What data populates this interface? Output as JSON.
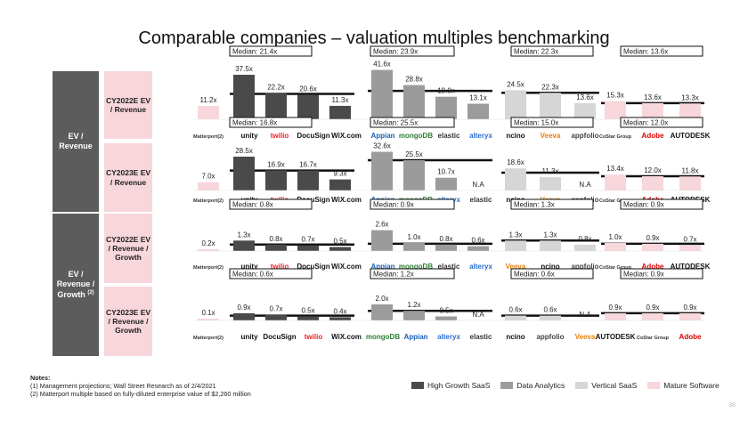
{
  "title": "Comparable companies – valuation multiples benchmarking",
  "colors": {
    "high_growth": "#4a4a4a",
    "data_analytics": "#9b9b9b",
    "vertical": "#d6d6d6",
    "mature": "#f7d6dc",
    "median_border": "#111111"
  },
  "groups": [
    {
      "label": "EV / Revenue"
    },
    {
      "label": "EV / Revenue / Growth",
      "sup": "(2)"
    }
  ],
  "rows": [
    {
      "label": "CY2022E EV / Revenue"
    },
    {
      "label": "CY2023E EV / Revenue"
    },
    {
      "label": "CY2022E EV / Revenue / Growth"
    },
    {
      "label": "CY2023E EV / Revenue / Growth"
    }
  ],
  "legend": [
    {
      "label": "High Growth SaaS",
      "color": "#4a4a4a"
    },
    {
      "label": "Data Analytics",
      "color": "#9b9b9b"
    },
    {
      "label": "Vertical SaaS",
      "color": "#d6d6d6"
    },
    {
      "label": "Mature Software",
      "color": "#f7d6dc"
    }
  ],
  "notes": {
    "heading": "Notes:",
    "lines": [
      "(1) Management projections; Wall Street Research as of 2/4/2021",
      "(2) Matterport multiple based on fully-diluted enterprise value of $2,260 million"
    ]
  },
  "page_number": "38",
  "chart_data": [
    {
      "type": "bar",
      "title": "CY2022E EV / Revenue",
      "ylim": [
        0,
        45
      ],
      "groups": [
        {
          "category": "Matterport",
          "color": "#f7d6dc",
          "median": null,
          "categories": [
            "Matterport"
          ],
          "values": [
            11.2
          ],
          "labels": [
            "11.2x"
          ]
        },
        {
          "category": "High Growth SaaS",
          "color": "#4a4a4a",
          "median_label": "Median: 21.4x",
          "median": 21.4,
          "categories": [
            "unity",
            "twilio",
            "DocuSign",
            "WiX.com"
          ],
          "values": [
            37.5,
            22.2,
            20.6,
            11.3
          ],
          "labels": [
            "37.5x",
            "22.2x",
            "20.6x",
            "11.3x"
          ]
        },
        {
          "category": "Data Analytics",
          "color": "#9b9b9b",
          "median_label": "Median: 23.9x",
          "median": 23.9,
          "categories": [
            "Appian",
            "mongoDB",
            "elastic",
            "alteryx"
          ],
          "values": [
            41.6,
            28.8,
            19.0,
            13.1
          ],
          "labels": [
            "41.6x",
            "28.8x",
            "19.0x",
            "13.1x"
          ]
        },
        {
          "category": "Vertical SaaS",
          "color": "#d6d6d6",
          "median_label": "Median: 22.3x",
          "median": 22.3,
          "categories": [
            "ncino",
            "Veeva",
            "appfolio"
          ],
          "values": [
            24.5,
            22.3,
            13.6
          ],
          "labels": [
            "24.5x",
            "22.3x",
            "13.6x"
          ]
        },
        {
          "category": "Mature Software",
          "color": "#f7d6dc",
          "median_label": "Median: 13.6x",
          "median": 13.6,
          "categories": [
            "CoStar Group",
            "Adobe",
            "AUTODESK"
          ],
          "values": [
            15.3,
            13.6,
            13.3
          ],
          "labels": [
            "15.3x",
            "13.6x",
            "13.3x"
          ]
        }
      ],
      "logos": [
        "Matterport(2)",
        "unity",
        "twilio",
        "DocuSign",
        "WiX.com",
        "Appian",
        "mongoDB",
        "elastic",
        "alteryx",
        "ncino",
        "Veeva",
        "appfolio",
        "CoStar Group",
        "Adobe",
        "AUTODESK"
      ]
    },
    {
      "type": "bar",
      "title": "CY2023E EV / Revenue",
      "ylim": [
        0,
        45
      ],
      "groups": [
        {
          "category": "Matterport",
          "color": "#f7d6dc",
          "median": null,
          "categories": [
            "Matterport"
          ],
          "values": [
            7.0
          ],
          "labels": [
            "7.0x"
          ]
        },
        {
          "category": "High Growth SaaS",
          "color": "#4a4a4a",
          "median_label": "Median: 16.8x",
          "median": 16.8,
          "categories": [
            "unity",
            "twilio",
            "DocuSign",
            "WiX.com"
          ],
          "values": [
            28.5,
            16.9,
            16.7,
            9.3
          ],
          "labels": [
            "28.5x",
            "16.9x",
            "16.7x",
            "9.3x"
          ]
        },
        {
          "category": "Data Analytics",
          "color": "#9b9b9b",
          "median_label": "Median: 25.5x",
          "median": 25.5,
          "categories": [
            "Appian",
            "mongoDB",
            "alteryx",
            "elastic"
          ],
          "values": [
            32.6,
            25.5,
            10.7,
            null
          ],
          "labels": [
            "32.6x",
            "25.5x",
            "10.7x",
            "N.A"
          ]
        },
        {
          "category": "Vertical SaaS",
          "color": "#d6d6d6",
          "median_label": "Median: 15.0x",
          "median": 15.0,
          "categories": [
            "ncino",
            "Veeva",
            "appfolio"
          ],
          "values": [
            18.6,
            11.3,
            null
          ],
          "labels": [
            "18.6x",
            "11.3x",
            "N.A"
          ]
        },
        {
          "category": "Mature Software",
          "color": "#f7d6dc",
          "median_label": "Median: 12.0x",
          "median": 12.0,
          "categories": [
            "Adobe",
            "CoStar Group",
            "AUTODESK"
          ],
          "values": [
            13.4,
            12.0,
            11.8
          ],
          "labels": [
            "13.4x",
            "12.0x",
            "11.8x"
          ]
        }
      ],
      "logos": [
        "Matterport(2)",
        "unity",
        "twilio",
        "DocuSign",
        "WiX.com",
        "Appian",
        "mongoDB",
        "alteryx",
        "elastic",
        "ncino",
        "Veeva",
        "appfolio",
        "CoStar Group",
        "Adobe",
        "AUTODESK"
      ]
    },
    {
      "type": "bar",
      "title": "CY2022E EV / Revenue / Growth",
      "ylim": [
        0,
        4
      ],
      "groups": [
        {
          "category": "Matterport",
          "color": "#f7d6dc",
          "median": null,
          "categories": [
            "Matterport"
          ],
          "values": [
            0.2
          ],
          "labels": [
            "0.2x"
          ]
        },
        {
          "category": "High Growth SaaS",
          "color": "#4a4a4a",
          "median_label": "Median: 0.8x",
          "median": 0.8,
          "categories": [
            "unity",
            "twilio",
            "DocuSign",
            "WiX.com"
          ],
          "values": [
            1.3,
            0.8,
            0.7,
            0.5
          ],
          "labels": [
            "1.3x",
            "0.8x",
            "0.7x",
            "0.5x"
          ]
        },
        {
          "category": "Data Analytics",
          "color": "#9b9b9b",
          "median_label": "Median: 0.9x",
          "median": 0.9,
          "categories": [
            "Appian",
            "mongoDB",
            "elastic",
            "alteryx"
          ],
          "values": [
            2.6,
            1.0,
            0.8,
            0.6
          ],
          "labels": [
            "2.6x",
            "1.0x",
            "0.8x",
            "0.6x"
          ]
        },
        {
          "category": "Vertical SaaS",
          "color": "#d6d6d6",
          "median_label": "Median: 1.3x",
          "median": 1.3,
          "categories": [
            "Veeva",
            "ncino",
            "appfolio"
          ],
          "values": [
            1.3,
            1.3,
            0.8
          ],
          "labels": [
            "1.3x",
            "1.3x",
            "0.8x"
          ]
        },
        {
          "category": "Mature Software",
          "color": "#f7d6dc",
          "median_label": "Median: 0.9x",
          "median": 0.9,
          "categories": [
            "CoStar Group",
            "Adobe",
            "AUTODESK"
          ],
          "values": [
            1.0,
            0.9,
            0.7
          ],
          "labels": [
            "1.0x",
            "0.9x",
            "0.7x"
          ]
        }
      ],
      "logos": [
        "Matterport(2)",
        "unity",
        "twilio",
        "DocuSign",
        "WiX.com",
        "Appian",
        "mongoDB",
        "elastic",
        "alteryx",
        "Veeva",
        "ncino",
        "appfolio",
        "CoStar Group",
        "Adobe",
        "AUTODESK"
      ]
    },
    {
      "type": "bar",
      "title": "CY2023E EV / Revenue / Growth",
      "ylim": [
        0,
        4
      ],
      "groups": [
        {
          "category": "Matterport",
          "color": "#f7d6dc",
          "median": null,
          "categories": [
            "Matterport"
          ],
          "values": [
            0.1
          ],
          "labels": [
            "0.1x"
          ]
        },
        {
          "category": "High Growth SaaS",
          "color": "#4a4a4a",
          "median_label": "Median: 0.6x",
          "median": 0.6,
          "categories": [
            "unity",
            "DocuSign",
            "twilio",
            "WiX.com"
          ],
          "values": [
            0.9,
            0.7,
            0.5,
            0.4
          ],
          "labels": [
            "0.9x",
            "0.7x",
            "0.5x",
            "0.4x"
          ]
        },
        {
          "category": "Data Analytics",
          "color": "#9b9b9b",
          "median_label": "Median: 1.2x",
          "median": 1.2,
          "categories": [
            "mongoDB",
            "Appian",
            "alteryx",
            "elastic"
          ],
          "values": [
            2.0,
            1.2,
            0.5,
            null
          ],
          "labels": [
            "2.0x",
            "1.2x",
            "0.5x",
            "N.A"
          ]
        },
        {
          "category": "Vertical SaaS",
          "color": "#d6d6d6",
          "median_label": "Median: 0.6x",
          "median": 0.6,
          "categories": [
            "ncino",
            "appfolio",
            "Veeva"
          ],
          "values": [
            0.6,
            0.6,
            null
          ],
          "labels": [
            "0.6x",
            "0.6x",
            "N.A"
          ]
        },
        {
          "category": "Mature Software",
          "color": "#f7d6dc",
          "median_label": "Median: 0.9x",
          "median": 0.9,
          "categories": [
            "AUTODESK",
            "CoStar Group",
            "Adobe"
          ],
          "values": [
            0.9,
            0.9,
            0.9
          ],
          "labels": [
            "0.9x",
            "0.9x",
            "0.9x"
          ]
        }
      ],
      "logos": [
        "Matterport(2)",
        "unity",
        "DocuSign",
        "twilio",
        "WiX.com",
        "mongoDB",
        "Appian",
        "alteryx",
        "elastic",
        "ncino",
        "appfolio",
        "Veeva",
        "AUTODESK",
        "CoStar Group",
        "Adobe"
      ]
    }
  ]
}
